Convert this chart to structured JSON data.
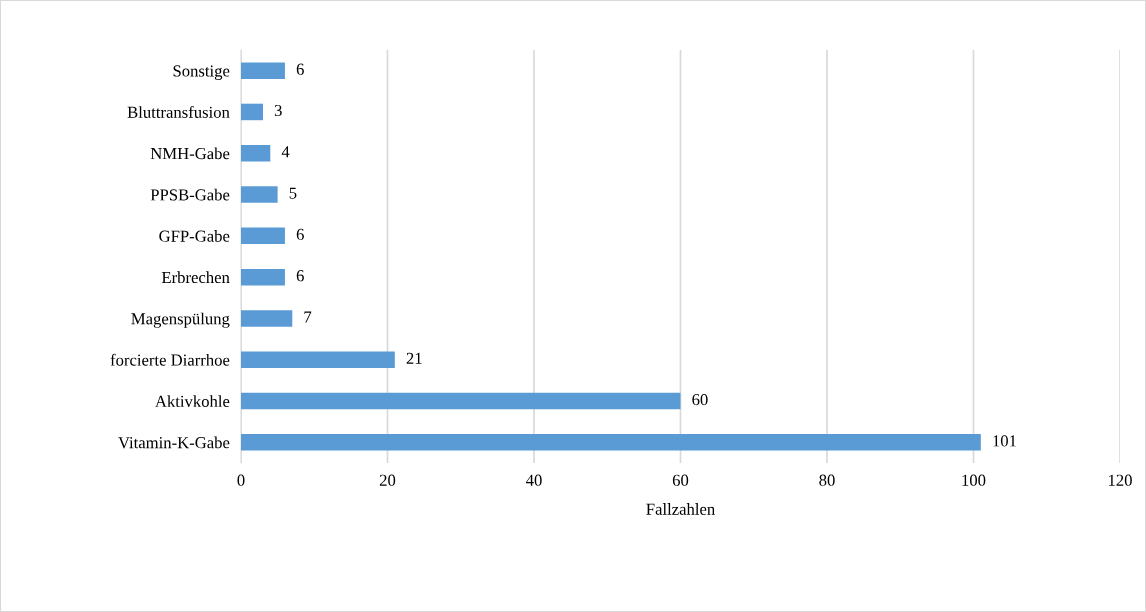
{
  "chart_data": {
    "type": "bar",
    "orientation": "horizontal",
    "xlabel": "Fallzahlen",
    "categories": [
      "Sonstige",
      "Bluttransfusion",
      "NMH-Gabe",
      "PPSB-Gabe",
      "GFP-Gabe",
      "Erbrechen",
      "Magenspülung",
      "forcierte Diarrhoe",
      "Aktivkohle",
      "Vitamin-K-Gabe"
    ],
    "values": [
      6,
      3,
      4,
      5,
      6,
      6,
      7,
      21,
      60,
      101
    ],
    "color": "#5b9bd5",
    "xlim": [
      0,
      120
    ],
    "xticks": [
      0,
      20,
      40,
      60,
      80,
      100,
      120
    ],
    "grid": "x",
    "data_labels": true
  }
}
